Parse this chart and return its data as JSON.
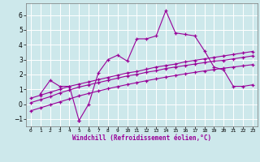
{
  "bg_color": "#cde8eb",
  "line_color": "#990099",
  "grid_color": "#ffffff",
  "xlabel": "Windchill (Refroidissement éolien,°C)",
  "xlim": [
    -0.5,
    23.5
  ],
  "ylim": [
    -1.5,
    6.8
  ],
  "yticks": [
    -1,
    0,
    1,
    2,
    3,
    4,
    5,
    6
  ],
  "xticks": [
    0,
    1,
    2,
    3,
    4,
    5,
    6,
    7,
    8,
    9,
    10,
    11,
    12,
    13,
    14,
    15,
    16,
    17,
    18,
    19,
    20,
    21,
    22,
    23
  ],
  "series1": {
    "x": [
      1,
      2,
      3,
      4,
      5,
      5,
      6,
      7,
      8,
      9,
      10,
      11,
      12,
      13,
      14,
      15,
      16,
      17,
      18,
      19,
      20,
      21,
      22,
      23
    ],
    "y": [
      0.7,
      1.6,
      1.2,
      1.2,
      -1.1,
      -1.1,
      0.0,
      2.1,
      3.0,
      3.3,
      2.9,
      4.4,
      4.4,
      4.6,
      6.3,
      4.8,
      4.7,
      4.6,
      3.6,
      2.5,
      2.3,
      1.2,
      1.2,
      1.3
    ]
  },
  "series2": {
    "x": [
      0,
      1,
      2,
      3,
      4,
      5,
      6,
      7,
      8,
      9,
      10,
      11,
      12,
      13,
      14,
      15,
      16,
      17,
      18,
      19,
      20,
      21,
      22,
      23
    ],
    "y": [
      0.4,
      0.6,
      0.8,
      1.0,
      1.2,
      1.35,
      1.5,
      1.65,
      1.8,
      1.95,
      2.1,
      2.2,
      2.35,
      2.5,
      2.6,
      2.7,
      2.85,
      2.95,
      3.05,
      3.15,
      3.25,
      3.35,
      3.45,
      3.55
    ]
  },
  "series3": {
    "x": [
      0,
      1,
      2,
      3,
      4,
      5,
      6,
      7,
      8,
      9,
      10,
      11,
      12,
      13,
      14,
      15,
      16,
      17,
      18,
      19,
      20,
      21,
      22,
      23
    ],
    "y": [
      0.1,
      0.3,
      0.5,
      0.75,
      0.95,
      1.15,
      1.3,
      1.45,
      1.6,
      1.75,
      1.9,
      2.0,
      2.15,
      2.25,
      2.4,
      2.5,
      2.6,
      2.7,
      2.8,
      2.9,
      2.95,
      3.05,
      3.15,
      3.25
    ]
  },
  "series4": {
    "x": [
      0,
      1,
      2,
      3,
      4,
      5,
      6,
      7,
      8,
      9,
      10,
      11,
      12,
      13,
      14,
      15,
      16,
      17,
      18,
      19,
      20,
      21,
      22,
      23
    ],
    "y": [
      -0.45,
      -0.25,
      -0.05,
      0.15,
      0.35,
      0.55,
      0.72,
      0.88,
      1.04,
      1.18,
      1.32,
      1.45,
      1.58,
      1.7,
      1.82,
      1.93,
      2.04,
      2.14,
      2.24,
      2.33,
      2.42,
      2.5,
      2.58,
      2.66
    ]
  }
}
